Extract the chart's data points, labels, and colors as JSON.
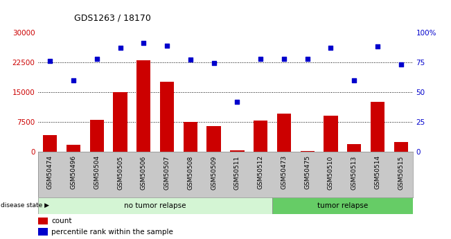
{
  "title": "GDS1263 / 18170",
  "categories": [
    "GSM50474",
    "GSM50496",
    "GSM50504",
    "GSM50505",
    "GSM50506",
    "GSM50507",
    "GSM50508",
    "GSM50509",
    "GSM50511",
    "GSM50512",
    "GSM50473",
    "GSM50475",
    "GSM50510",
    "GSM50513",
    "GSM50514",
    "GSM50515"
  ],
  "bar_values": [
    4200,
    1800,
    8000,
    15000,
    23000,
    17500,
    7500,
    6500,
    300,
    7800,
    9500,
    200,
    9000,
    2000,
    12500,
    2500
  ],
  "dot_values": [
    76,
    60,
    78,
    87,
    91,
    89,
    77,
    74,
    42,
    78,
    78,
    78,
    87,
    60,
    88,
    73
  ],
  "bar_color": "#cc0000",
  "dot_color": "#0000cc",
  "ylim_left": [
    0,
    30000
  ],
  "ylim_right": [
    0,
    100
  ],
  "yticks_left": [
    0,
    7500,
    15000,
    22500,
    30000
  ],
  "yticks_right": [
    0,
    25,
    50,
    75,
    100
  ],
  "ytick_labels_right": [
    "0",
    "25",
    "50",
    "75",
    "100%"
  ],
  "grid_values": [
    7500,
    15000,
    22500
  ],
  "no_tumor_count": 10,
  "tumor_count": 6,
  "no_tumor_label": "no tumor relapse",
  "tumor_label": "tumor relapse",
  "disease_state_label": "disease state",
  "legend_bar_label": "count",
  "legend_dot_label": "percentile rank within the sample",
  "background_color": "#ffffff",
  "tick_bg_color": "#c8c8c8",
  "no_tumor_bg": "#d4f5d4",
  "tumor_bg": "#66cc66"
}
